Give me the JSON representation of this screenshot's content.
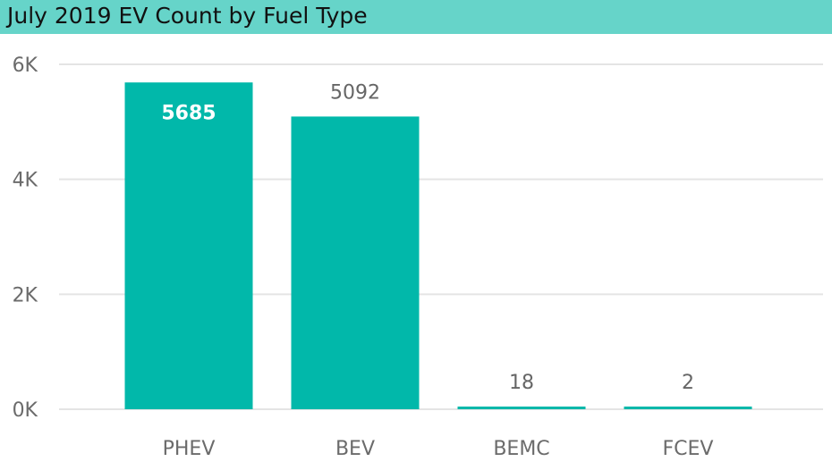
{
  "header": {
    "title": "July 2019 EV Count by Fuel Type"
  },
  "colors": {
    "title_bar": "#66d4c9",
    "bar": "#01b8aa",
    "gridline": "#e4e4e4",
    "label_outside": "#666666",
    "label_inside": "#ffffff"
  },
  "chart_data": {
    "type": "bar",
    "title": "July 2019 EV Count by Fuel Type",
    "xlabel": "",
    "ylabel": "",
    "categories": [
      "PHEV",
      "BEV",
      "BEMC",
      "FCEV"
    ],
    "values": [
      5685,
      5092,
      18,
      2
    ],
    "data_labels": [
      "5685",
      "5092",
      "18",
      "2"
    ],
    "ylim": [
      0,
      6000
    ],
    "yticks": [
      0,
      2000,
      4000,
      6000
    ],
    "ytick_labels": [
      "0K",
      "2K",
      "4K",
      "6K"
    ],
    "grid": true,
    "legend": "none"
  }
}
